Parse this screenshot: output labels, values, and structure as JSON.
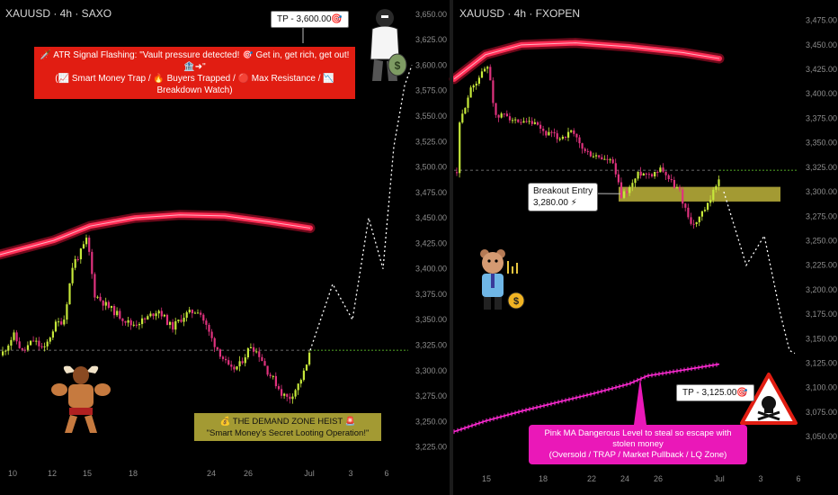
{
  "chart_data": [
    {
      "type": "candlestick",
      "symbol": "XAUUSD · 4h · SAXO",
      "x_tick_labels": [
        "10",
        "12",
        "15",
        "18",
        "24",
        "26",
        "Jul",
        "3",
        "6"
      ],
      "y_tick_labels": [
        "3,650.00",
        "3,625.00",
        "3,600.00",
        "3,575.00",
        "3,550.00",
        "3,525.00",
        "3,500.00",
        "3,475.00",
        "3,450.00",
        "3,425.00",
        "3,400.00",
        "3,375.00",
        "3,350.00",
        "3,325.00",
        "3,300.00",
        "3,275.00",
        "3,250.00",
        "3,225.00"
      ],
      "ylim": [
        3222,
        3657
      ],
      "close_path": [
        [
          0,
          3315
        ],
        [
          14,
          3335
        ],
        [
          24,
          3318
        ],
        [
          36,
          3330
        ],
        [
          48,
          3320
        ],
        [
          60,
          3345
        ],
        [
          70,
          3350
        ],
        [
          80,
          3405
        ],
        [
          88,
          3415
        ],
        [
          96,
          3430
        ],
        [
          104,
          3375
        ],
        [
          116,
          3365
        ],
        [
          130,
          3355
        ],
        [
          145,
          3345
        ],
        [
          160,
          3350
        ],
        [
          175,
          3360
        ],
        [
          190,
          3342
        ],
        [
          205,
          3355
        ],
        [
          220,
          3360
        ],
        [
          235,
          3330
        ],
        [
          245,
          3315
        ],
        [
          255,
          3300
        ],
        [
          265,
          3305
        ],
        [
          278,
          3325
        ],
        [
          288,
          3315
        ],
        [
          296,
          3300
        ],
        [
          304,
          3290
        ],
        [
          312,
          3278
        ],
        [
          320,
          3272
        ],
        [
          330,
          3285
        ],
        [
          338,
          3300
        ],
        [
          344,
          3318
        ]
      ],
      "price_line": 3320,
      "ma_band": [
        [
          0,
          3414
        ],
        [
          60,
          3428
        ],
        [
          100,
          3442
        ],
        [
          150,
          3450
        ],
        [
          200,
          3453
        ],
        [
          250,
          3452
        ],
        [
          300,
          3446
        ],
        [
          345,
          3440
        ]
      ],
      "projection": [
        [
          345,
          3320
        ],
        [
          370,
          3385
        ],
        [
          392,
          3350
        ],
        [
          410,
          3450
        ],
        [
          426,
          3400
        ],
        [
          438,
          3520
        ],
        [
          450,
          3580
        ],
        [
          458,
          3600
        ]
      ],
      "tp_label": "TP - 3,600.00🎯",
      "tp_value": 3600
    },
    {
      "type": "candlestick",
      "symbol": "XAUUSD · 4h · FXOPEN",
      "x_tick_labels": [
        "15",
        "18",
        "22",
        "24",
        "26",
        "Jul",
        "3",
        "6"
      ],
      "y_tick_labels": [
        "3,475.00",
        "3,450.00",
        "3,425.00",
        "3,400.00",
        "3,375.00",
        "3,350.00",
        "3,325.00",
        "3,300.00",
        "3,275.00",
        "3,250.00",
        "3,225.00",
        "3,200.00",
        "3,175.00",
        "3,150.00",
        "3,125.00",
        "3,100.00",
        "3,075.00",
        "3,050.00"
      ],
      "ylim": [
        3040,
        3482
      ],
      "close_path": [
        [
          508,
          3360
        ],
        [
          518,
          3395
        ],
        [
          526,
          3410
        ],
        [
          534,
          3420
        ],
        [
          542,
          3430
        ],
        [
          550,
          3375
        ],
        [
          562,
          3380
        ],
        [
          575,
          3368
        ],
        [
          590,
          3370
        ],
        [
          605,
          3360
        ],
        [
          620,
          3355
        ],
        [
          635,
          3360
        ],
        [
          650,
          3340
        ],
        [
          665,
          3335
        ],
        [
          680,
          3330
        ],
        [
          690,
          3295
        ],
        [
          700,
          3305
        ],
        [
          710,
          3320
        ],
        [
          722,
          3318
        ],
        [
          735,
          3325
        ],
        [
          745,
          3310
        ],
        [
          755,
          3300
        ],
        [
          762,
          3280
        ],
        [
          770,
          3265
        ],
        [
          778,
          3275
        ],
        [
          788,
          3288
        ],
        [
          800,
          3320
        ]
      ],
      "price_line": 3322,
      "ma_band": [
        [
          505,
          3415
        ],
        [
          540,
          3440
        ],
        [
          580,
          3450
        ],
        [
          640,
          3452
        ],
        [
          700,
          3448
        ],
        [
          760,
          3442
        ],
        [
          800,
          3436
        ]
      ],
      "pink_ma": [
        [
          505,
          3055
        ],
        [
          540,
          3066
        ],
        [
          580,
          3076
        ],
        [
          620,
          3085
        ],
        [
          660,
          3094
        ],
        [
          700,
          3104
        ],
        [
          720,
          3112
        ],
        [
          760,
          3118
        ],
        [
          800,
          3124
        ]
      ],
      "projection": [
        [
          805,
          3300
        ],
        [
          830,
          3225
        ],
        [
          850,
          3255
        ],
        [
          868,
          3175
        ],
        [
          878,
          3138
        ],
        [
          884,
          3135
        ]
      ],
      "zone": [
        3290,
        3305
      ],
      "tp_label": "TP - 3,125.00🎯",
      "tp_value": 3125,
      "breakout_label": [
        "Breakout Entry",
        "3,280.00 ⚡"
      ]
    }
  ],
  "annotations": {
    "left_banner": [
      "🗡️ ATR Signal Flashing: \"Vault pressure detected! 🎯 Get in, get rich, get out! 🏦➜\"",
      "(📈 Smart Money Trap / 🔥 Buyers Trapped / 🔴 Max Resistance / 📉 Breakdown Watch)"
    ],
    "heist_banner": [
      "💰 THE DEMAND ZONE HEIST 🚨",
      "\"Smart Money's Secret Looting Operation!\""
    ],
    "pink_banner": [
      "Pink MA Dangerous Level to steal so escape with stolen money",
      "(Oversold / TRAP / Market Pullback / LQ Zone)"
    ]
  },
  "colors": {
    "bull": "#c6e83a",
    "bear": "#e0327e",
    "ma": "#ff2d55",
    "pink_ma": "#ff2ad4",
    "projection": "#ffffff",
    "grid_dash": "#8a8a8a",
    "green_dash": "#6edc2f"
  },
  "icons": [
    "thief-money-bags-icon",
    "bull-bodybuilder-icon",
    "bear-trader-icon",
    "danger-skull-sign-icon"
  ]
}
